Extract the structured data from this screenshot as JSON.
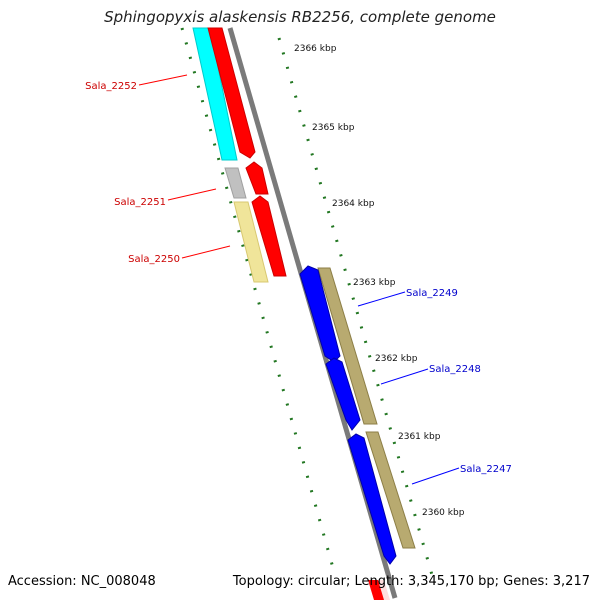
{
  "title": "Sphingopyxis alaskensis RB2256, complete genome",
  "footer": {
    "accession": "Accession: NC_008048",
    "summary": "Topology: circular; Length: 3,345,170 bp; Genes: 3,217"
  },
  "colors": {
    "forward_gene": "#ff0000",
    "reverse_gene": "#0000ff",
    "forward_label": "#cc0000",
    "reverse_label": "#0000cc",
    "cyan_track": "#00ffff",
    "khaki_track": "#b8aa70",
    "pale_track": "#f0e59a",
    "grey_track": "#c0c0c0",
    "backbone": "#808080",
    "ticks": "#227722"
  },
  "ruler": [
    {
      "label": "2366 kbp",
      "pos": 2366
    },
    {
      "label": "2365 kbp",
      "pos": 2365
    },
    {
      "label": "2364 kbp",
      "pos": 2364
    },
    {
      "label": "2363 kbp",
      "pos": 2363
    },
    {
      "label": "2362 kbp",
      "pos": 2362
    },
    {
      "label": "2361 kbp",
      "pos": 2361
    },
    {
      "label": "2360 kbp",
      "pos": 2360
    }
  ],
  "forward_genes": [
    {
      "name": "Sala_2252"
    },
    {
      "name": "Sala_2251"
    },
    {
      "name": "Sala_2250"
    }
  ],
  "reverse_genes": [
    {
      "name": "Sala_2249"
    },
    {
      "name": "Sala_2248"
    },
    {
      "name": "Sala_2247"
    }
  ]
}
